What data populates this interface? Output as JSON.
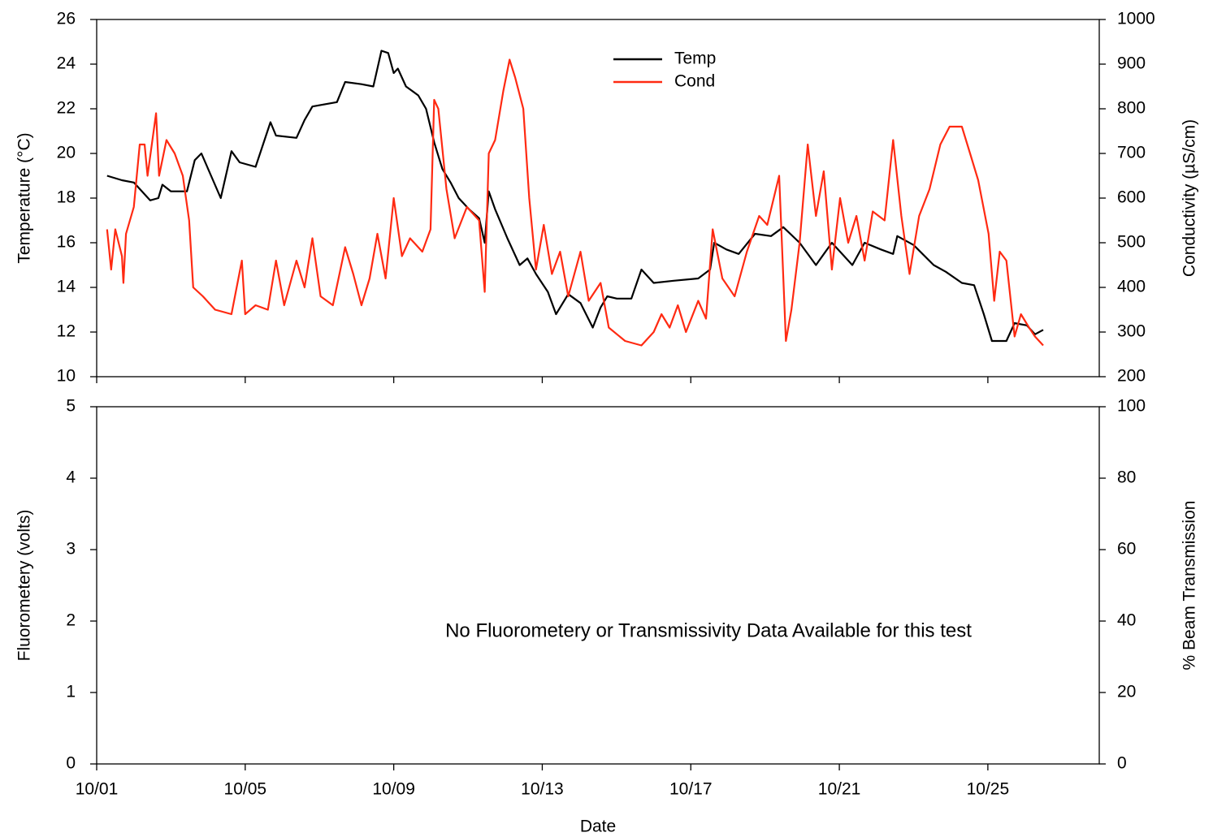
{
  "chart_data": [
    {
      "type": "line",
      "ylabel": "Temperature (°C)",
      "y2label": "Conductivity (µS/cm)",
      "xlim": [
        1,
        28
      ],
      "xticks": [
        1,
        5,
        9,
        13,
        17,
        21,
        25
      ],
      "ylim": [
        10,
        26
      ],
      "yticks": [
        10,
        12,
        14,
        16,
        18,
        20,
        22,
        24,
        26
      ],
      "y2lim": [
        200,
        1000
      ],
      "y2ticks": [
        200,
        300,
        400,
        500,
        600,
        700,
        800,
        900,
        1000
      ],
      "legend": "top-center",
      "series": [
        {
          "name": "Temp",
          "color": "#000000",
          "x": [
            1.28,
            1.68,
            2.0,
            2.44,
            2.66,
            2.77,
            3.0,
            3.43,
            3.64,
            3.82,
            4.08,
            4.34,
            4.63,
            4.85,
            5.28,
            5.68,
            5.83,
            6.38,
            6.6,
            6.81,
            7.47,
            7.69,
            8.13,
            8.45,
            8.67,
            8.85,
            9.0,
            9.11,
            9.33,
            9.66,
            9.87,
            10.09,
            10.31,
            10.53,
            10.75,
            11.03,
            11.3,
            11.45,
            11.56,
            11.73,
            12.06,
            12.39,
            12.6,
            12.83,
            13.15,
            13.37,
            13.7,
            14.03,
            14.36,
            14.57,
            14.75,
            15.01,
            15.4,
            15.67,
            16.0,
            16.54,
            17.2,
            17.52,
            17.63,
            17.96,
            18.29,
            18.73,
            19.16,
            19.49,
            19.93,
            20.37,
            20.8,
            21.35,
            21.68,
            22.12,
            22.45,
            22.56,
            23.0,
            23.54,
            23.87,
            24.3,
            24.63,
            24.89,
            25.11,
            25.5,
            25.72,
            26.05,
            26.27,
            26.49
          ],
          "values": [
            19.0,
            18.8,
            18.7,
            17.9,
            18.0,
            18.6,
            18.3,
            18.3,
            19.7,
            20.0,
            19.0,
            18.0,
            20.1,
            19.6,
            19.4,
            21.4,
            20.8,
            20.7,
            21.5,
            22.1,
            22.3,
            23.2,
            23.1,
            23.0,
            24.6,
            24.5,
            23.6,
            23.8,
            23.0,
            22.6,
            22.0,
            20.5,
            19.3,
            18.7,
            18.0,
            17.5,
            17.1,
            16.0,
            18.3,
            17.5,
            16.2,
            15.0,
            15.3,
            14.6,
            13.8,
            12.8,
            13.7,
            13.3,
            12.2,
            13.1,
            13.6,
            13.5,
            13.5,
            14.8,
            14.2,
            14.3,
            14.4,
            14.8,
            16.0,
            15.7,
            15.5,
            16.4,
            16.3,
            16.7,
            16.0,
            15.0,
            16.0,
            15.0,
            16.0,
            15.7,
            15.5,
            16.3,
            15.9,
            15.0,
            14.7,
            14.2,
            14.1,
            12.8,
            11.6,
            11.6,
            12.4,
            12.3,
            11.9,
            12.1
          ]
        },
        {
          "name": "Cond",
          "color": "#ff2a12",
          "axis": "y2",
          "x": [
            1.28,
            1.39,
            1.5,
            1.68,
            1.72,
            1.79,
            2.0,
            2.16,
            2.29,
            2.37,
            2.6,
            2.68,
            2.88,
            3.1,
            3.32,
            3.49,
            3.6,
            3.86,
            4.19,
            4.63,
            4.91,
            5.0,
            5.28,
            5.61,
            5.83,
            6.05,
            6.38,
            6.6,
            6.81,
            7.03,
            7.36,
            7.69,
            7.91,
            8.13,
            8.35,
            8.56,
            8.78,
            9.0,
            9.22,
            9.44,
            9.77,
            9.99,
            10.09,
            10.2,
            10.42,
            10.64,
            10.97,
            11.3,
            11.45,
            11.56,
            11.73,
            11.95,
            12.12,
            12.27,
            12.49,
            12.65,
            12.83,
            13.04,
            13.26,
            13.48,
            13.7,
            14.03,
            14.25,
            14.57,
            14.79,
            15.23,
            15.67,
            16.0,
            16.21,
            16.43,
            16.65,
            16.87,
            17.2,
            17.41,
            17.59,
            17.85,
            18.18,
            18.51,
            18.84,
            19.06,
            19.38,
            19.56,
            19.71,
            19.93,
            20.15,
            20.37,
            20.58,
            20.8,
            21.02,
            21.24,
            21.46,
            21.68,
            21.9,
            22.22,
            22.45,
            22.67,
            22.89,
            23.15,
            23.43,
            23.72,
            23.97,
            24.3,
            24.52,
            24.74,
            25.02,
            25.17,
            25.32,
            25.5,
            25.72,
            25.89,
            26.11,
            26.27,
            26.49
          ],
          "values": [
            530,
            440,
            530,
            470,
            410,
            520,
            580,
            720,
            720,
            650,
            790,
            650,
            730,
            700,
            650,
            550,
            400,
            380,
            350,
            340,
            460,
            340,
            360,
            350,
            460,
            360,
            460,
            400,
            510,
            380,
            360,
            490,
            430,
            360,
            420,
            520,
            420,
            600,
            470,
            510,
            480,
            530,
            820,
            800,
            620,
            510,
            580,
            550,
            390,
            700,
            730,
            840,
            910,
            870,
            800,
            600,
            440,
            540,
            430,
            480,
            380,
            480,
            370,
            410,
            310,
            280,
            270,
            300,
            340,
            310,
            360,
            300,
            370,
            330,
            530,
            420,
            380,
            480,
            560,
            540,
            650,
            280,
            350,
            500,
            720,
            560,
            660,
            440,
            600,
            500,
            560,
            460,
            570,
            550,
            730,
            560,
            430,
            560,
            620,
            720,
            760,
            760,
            700,
            640,
            520,
            370,
            480,
            460,
            290,
            340,
            310,
            290,
            270
          ]
        }
      ]
    },
    {
      "type": "line",
      "ylabel": "Fluorometery (volts)",
      "y2label": "% Beam Transmission",
      "xlabel": "Date",
      "annotation": "No Fluorometery or Transmissivity Data Available for this test",
      "xlim": [
        1,
        28
      ],
      "xticks": [
        {
          "value": 1,
          "label": "10/01"
        },
        {
          "value": 5,
          "label": "10/05"
        },
        {
          "value": 9,
          "label": "10/09"
        },
        {
          "value": 13,
          "label": "10/13"
        },
        {
          "value": 17,
          "label": "10/17"
        },
        {
          "value": 21,
          "label": "10/21"
        },
        {
          "value": 25,
          "label": "10/25"
        }
      ],
      "ylim": [
        0,
        5
      ],
      "yticks": [
        0,
        1,
        2,
        3,
        4,
        5
      ],
      "y2lim": [
        0,
        100
      ],
      "y2ticks": [
        0,
        20,
        40,
        60,
        80,
        100
      ],
      "series": []
    }
  ]
}
